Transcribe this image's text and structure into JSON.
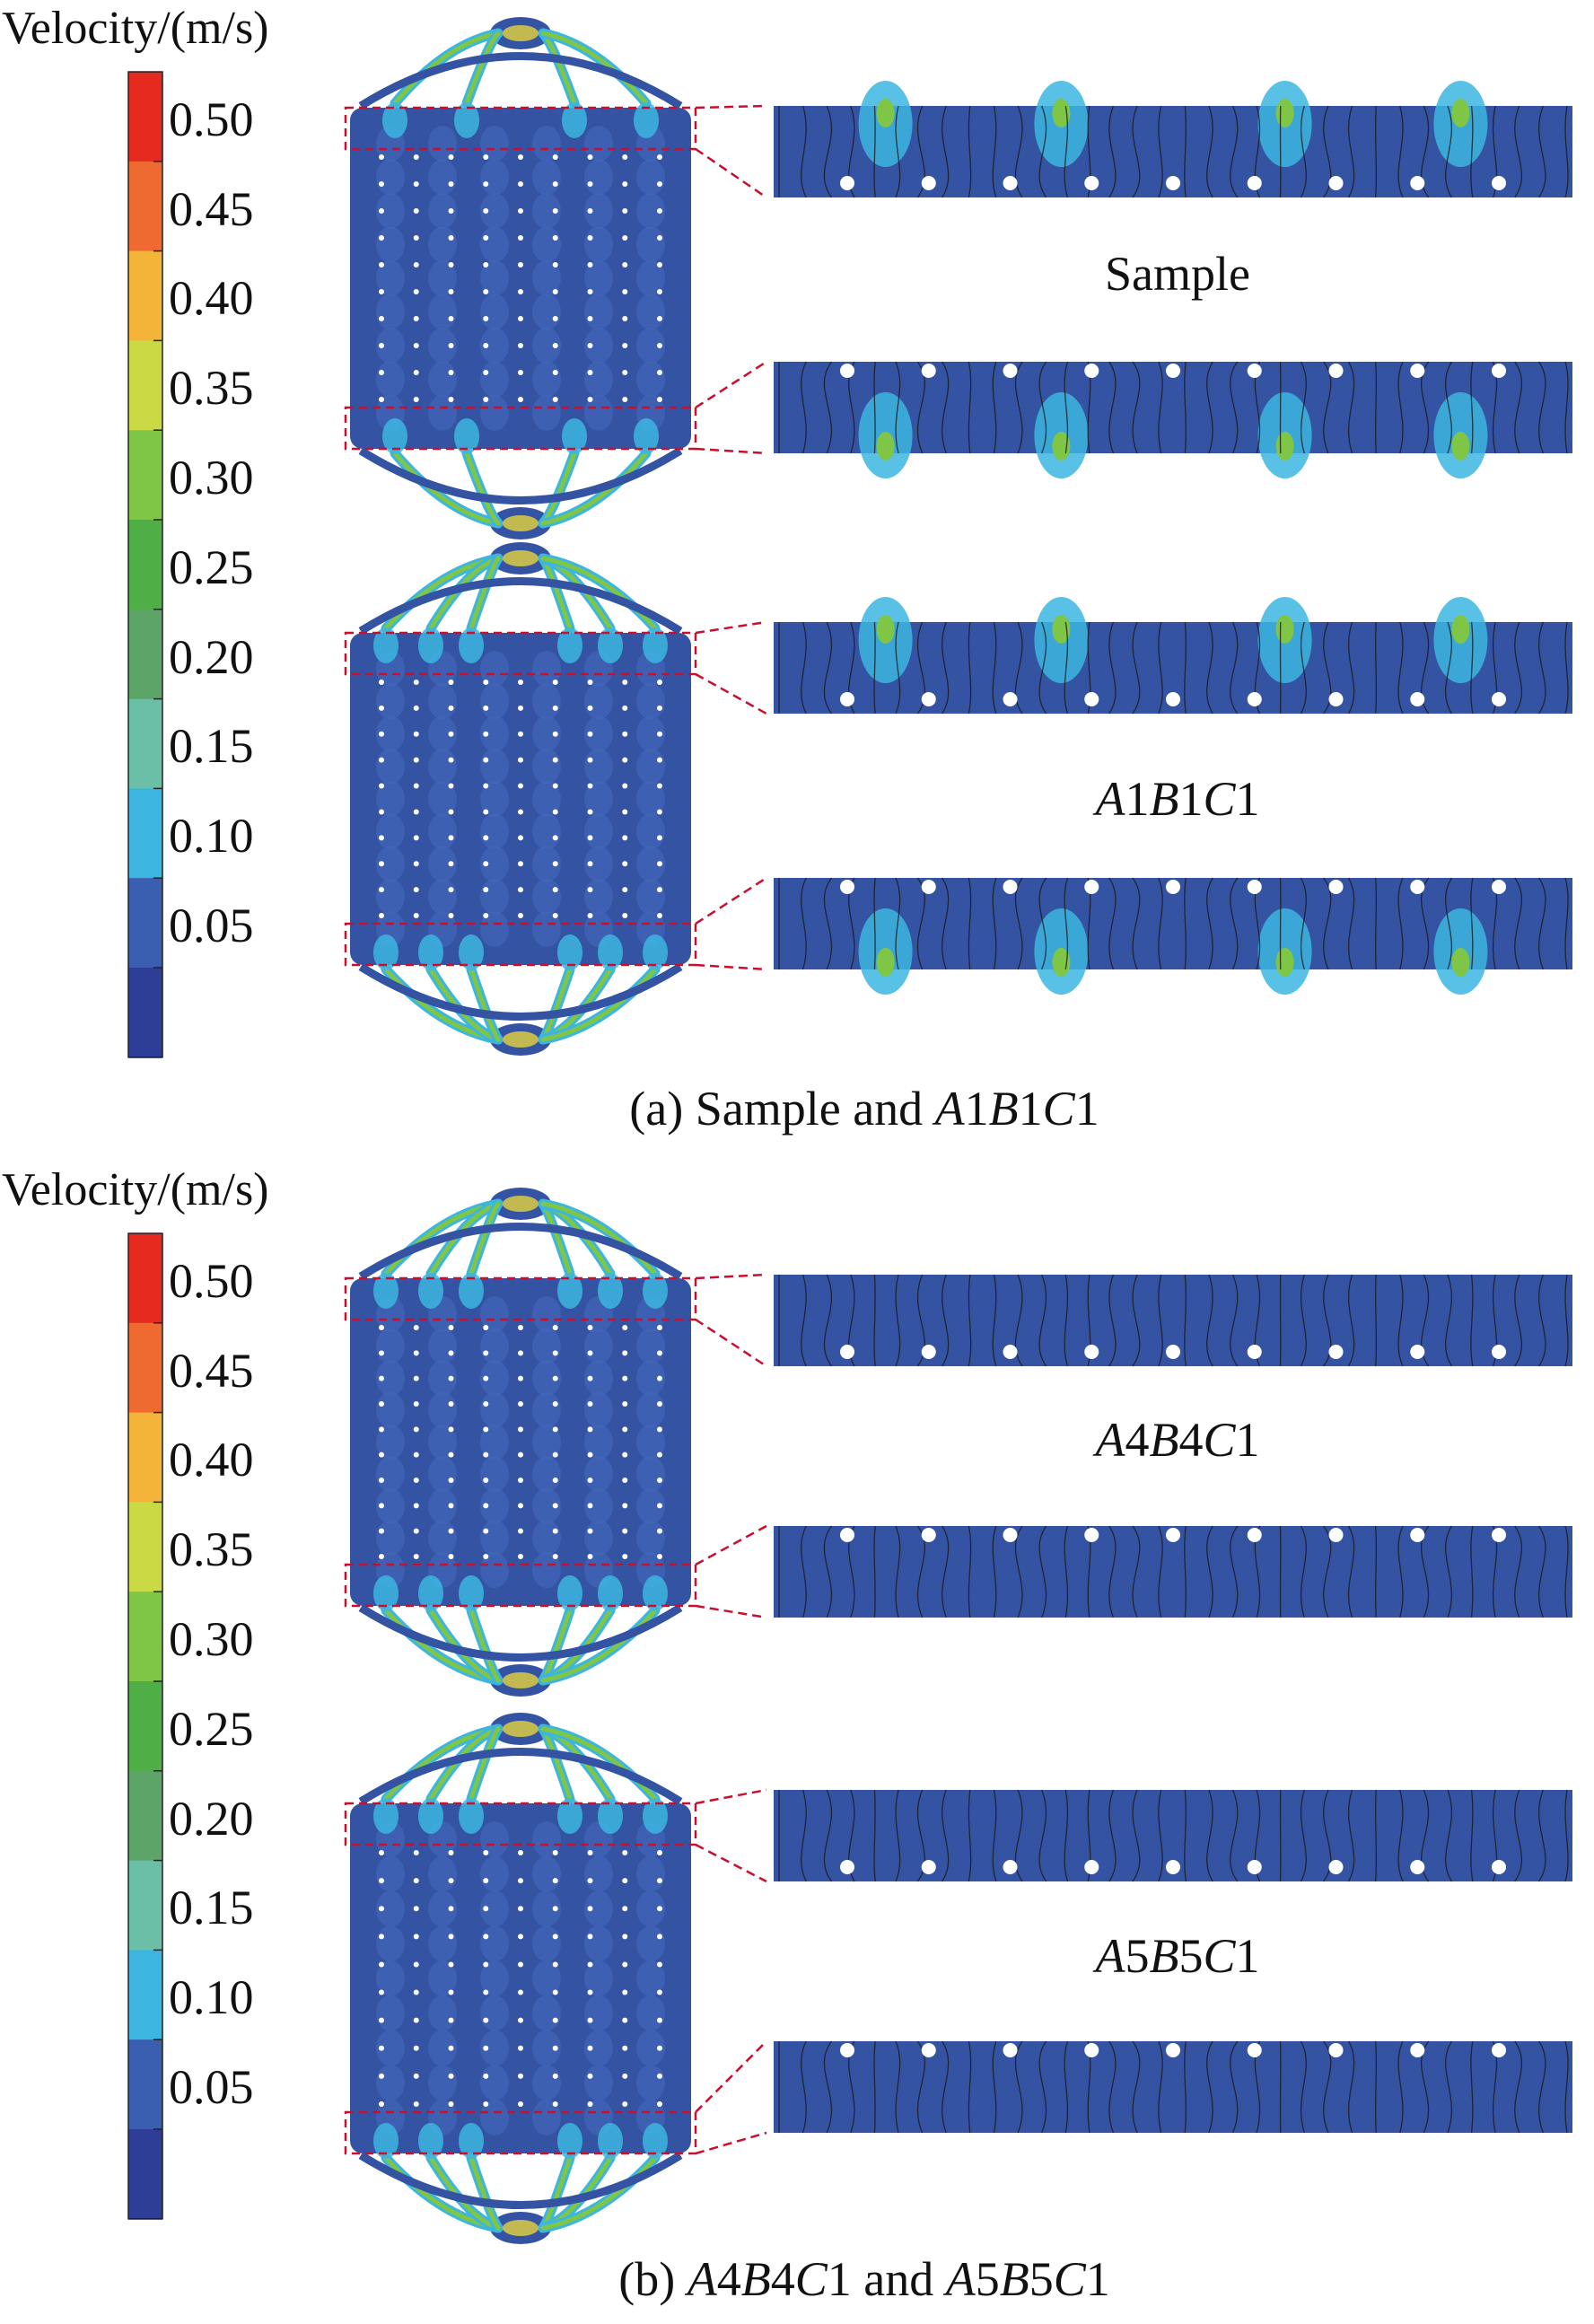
{
  "colorbar": {
    "title": "Velocity/(m/s)",
    "ticks": [
      "0.50",
      "0.45",
      "0.40",
      "0.35",
      "0.30",
      "0.25",
      "0.20",
      "0.15",
      "0.10",
      "0.05"
    ],
    "colors": [
      "#e52a1f",
      "#ef6a30",
      "#f4b43a",
      "#c9da45",
      "#7fc646",
      "#4fae45",
      "#5da469",
      "#6abfa6",
      "#3cb6e0",
      "#3a5fb0",
      "#2e3d95"
    ]
  },
  "panels": [
    {
      "caption_parts": [
        "(a) Sample and ",
        "A",
        "1",
        "B",
        "1",
        "C",
        "1"
      ],
      "sublabels": [
        {
          "parts": [
            "Sample"
          ]
        },
        {
          "parts": [
            "A",
            "1",
            "B",
            "1",
            "C",
            "1"
          ]
        }
      ]
    },
    {
      "caption_parts": [
        "(b) ",
        "A",
        "4",
        "B",
        "4",
        "C",
        "1",
        " and ",
        "A",
        "5",
        "B",
        "5",
        "C",
        "1"
      ],
      "sublabels": [
        {
          "parts": [
            "A",
            "4",
            "B",
            "4",
            "C",
            "1"
          ]
        },
        {
          "parts": [
            "A",
            "5",
            "B",
            "5",
            "C",
            "1"
          ]
        }
      ]
    }
  ],
  "field_colors": {
    "background": "#3553a3",
    "light": "#4166b8",
    "cyan": "#3cb6e0",
    "green": "#7fc646",
    "yellow": "#e6d43c",
    "guide": "#c8102e",
    "streamline": "#1a1a1a"
  }
}
